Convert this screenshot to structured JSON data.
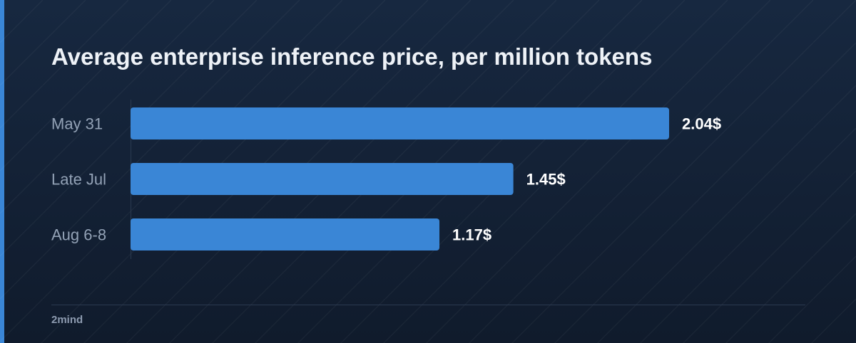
{
  "colors": {
    "background_top": "#172840",
    "background_bottom": "#101b2c",
    "accent": "#3a86d6",
    "bar": "#3a86d6",
    "title": "#eef2f7",
    "category_label": "#93a2b6",
    "value_label": "#ffffff",
    "brand": "#8d9bb0"
  },
  "footer": {
    "brand": "2mind"
  },
  "chart_data": {
    "type": "bar",
    "orientation": "horizontal",
    "title": "Average enterprise inference price, per million tokens",
    "xlabel": "",
    "ylabel": "",
    "categories": [
      "May 31",
      "Late Jul",
      "Aug 6-8"
    ],
    "values": [
      2.04,
      1.45,
      1.17
    ],
    "value_labels": [
      "2.04$",
      "1.45$",
      "1.17$"
    ],
    "xlim": [
      0,
      2.04
    ],
    "grid": false,
    "legend": "none"
  }
}
